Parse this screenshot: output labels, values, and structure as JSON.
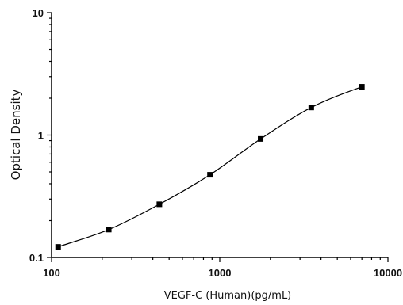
{
  "chart_data": {
    "type": "scatter",
    "title": "",
    "xlabel": "VEGF-C (Human)(pg/mL)",
    "ylabel": "Optical Density",
    "xscale": "log",
    "yscale": "log",
    "xlim": [
      100,
      10000
    ],
    "ylim": [
      0.1,
      10
    ],
    "x_ticks": [
      100,
      1000,
      10000
    ],
    "x_tick_labels": [
      "100",
      "1000",
      "10000"
    ],
    "y_ticks": [
      0.1,
      1,
      10
    ],
    "y_tick_labels": [
      "0.1",
      "1",
      "10"
    ],
    "grid": false,
    "legend": "none",
    "marker": "square",
    "series": [
      {
        "x": [
          109.375,
          218.75,
          437.5,
          875,
          1750,
          3500,
          7000
        ],
        "y": [
          0.122,
          0.169,
          0.272,
          0.474,
          0.93,
          1.68,
          2.48
        ]
      }
    ],
    "fit_curve": "smooth",
    "colors": {
      "marker": "#000000",
      "line": "#000000",
      "axis": "#000000"
    }
  }
}
